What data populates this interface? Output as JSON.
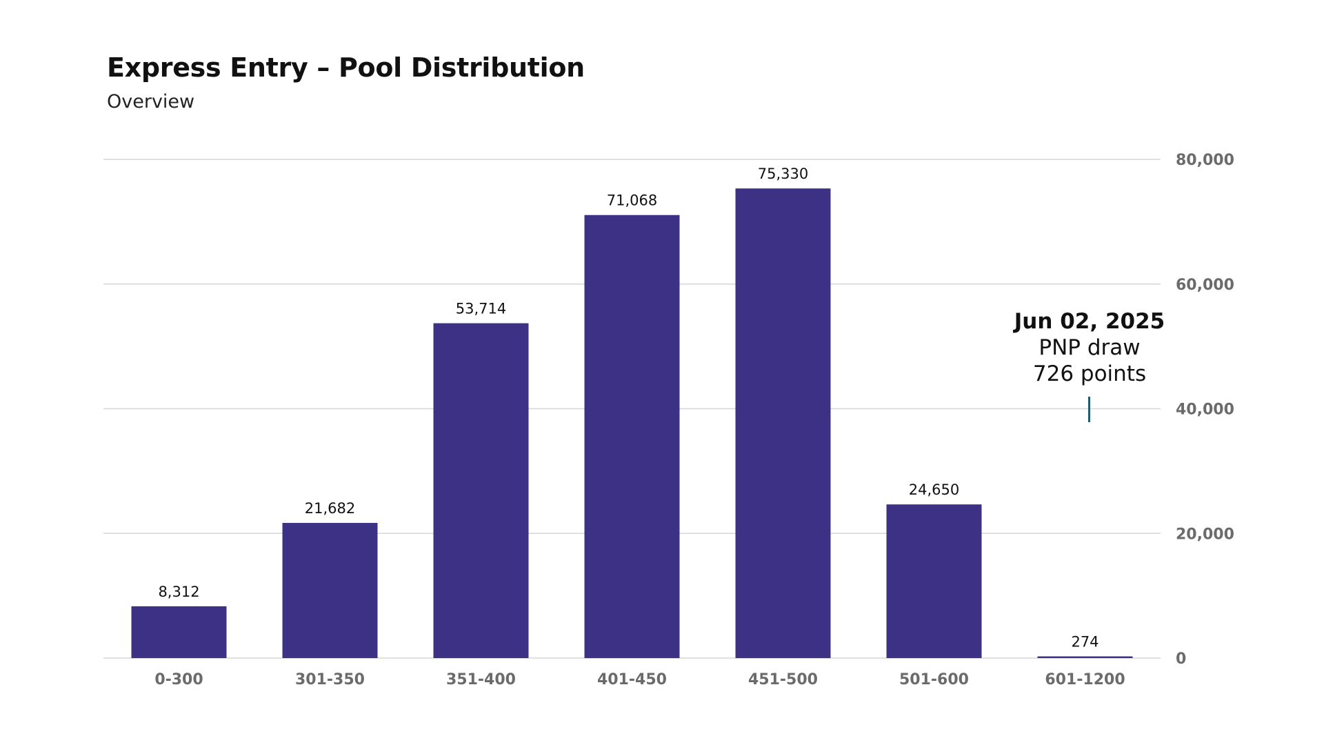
{
  "colors": {
    "bar": "#3d3186",
    "grid": "#d6d6d6",
    "axis_text": "#6b6b6b",
    "annotation_marker": "#1f5c73"
  },
  "annotation": {
    "date": "Jun 02, 2025",
    "line1": "PNP draw",
    "line2": "726 points"
  },
  "chart_data": {
    "type": "bar",
    "title": "Express Entry – Pool Distribution",
    "subtitle": "Overview",
    "xlabel": "",
    "ylabel": "",
    "categories": [
      "0-300",
      "301-350",
      "351-400",
      "401-450",
      "451-500",
      "501-600",
      "601-1200"
    ],
    "values": [
      8312,
      21682,
      53714,
      71068,
      75330,
      24650,
      274
    ],
    "value_labels": [
      "8,312",
      "21,682",
      "53,714",
      "71,068",
      "75,330",
      "24,650",
      "274"
    ],
    "ylim": [
      0,
      80000
    ],
    "yticks": [
      0,
      20000,
      40000,
      60000,
      80000
    ],
    "ytick_labels": [
      "0",
      "20,000",
      "40,000",
      "60,000",
      "80,000"
    ],
    "y_axis_position": "right",
    "grid": true,
    "legend": false
  }
}
